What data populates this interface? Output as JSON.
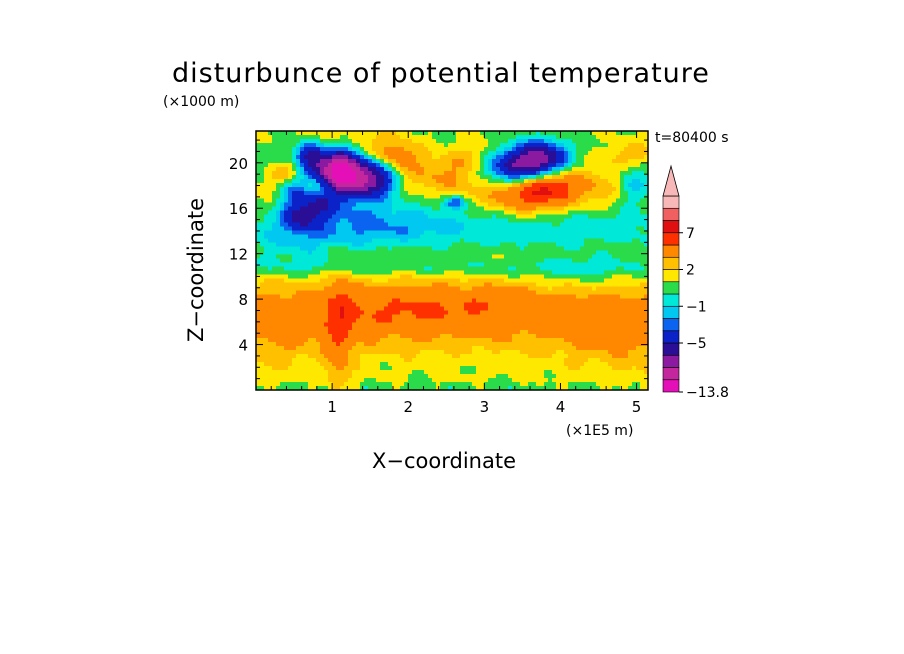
{
  "chart_data": {
    "type": "heatmap",
    "title": "disturbunce of potential temperature",
    "xlabel": "X−coordinate",
    "ylabel": "Z−coordinate",
    "x_unit_label": "(×1E5 m)",
    "y_unit_label": "(×1000 m)",
    "time_label": "t=80400 s",
    "xlim": [
      0,
      5.15
    ],
    "ylim": [
      0,
      22.8
    ],
    "x_ticks": [
      "1",
      "2",
      "3",
      "4",
      "5"
    ],
    "y_ticks": [
      "4",
      "8",
      "12",
      "16",
      "20"
    ],
    "colorbar": {
      "levels": [
        -13.8,
        -11,
        -9,
        -7,
        -5,
        -3,
        -2,
        -1,
        0,
        1,
        2,
        3,
        5,
        7,
        9,
        11
      ],
      "colors": [
        "#e40fb6",
        "#c4269e",
        "#8c1aa0",
        "#2a0f96",
        "#0a22c8",
        "#0a64f0",
        "#00c8f0",
        "#00e8d8",
        "#2adc4a",
        "#ffe800",
        "#ffc000",
        "#ff8800",
        "#ff3000",
        "#e01010",
        "#f06060",
        "#f8b8b8"
      ],
      "extend": "max",
      "labels": [
        "7",
        "2",
        "−1",
        "−5",
        "−13.8"
      ],
      "label_values": [
        7,
        2,
        -1,
        -5,
        -13.8
      ]
    },
    "field": {
      "background": 1.2,
      "features": [
        {
          "x": 2.5,
          "z": 6.5,
          "sx": 2.6,
          "sz": 2.6,
          "a": 2.2
        },
        {
          "x": 4.9,
          "z": 5.5,
          "sx": 0.6,
          "sz": 3.0,
          "a": 1.6
        },
        {
          "x": 0.25,
          "z": 5.0,
          "sx": 0.6,
          "sz": 3.0,
          "a": 1.0
        },
        {
          "x": 1.7,
          "z": 7.0,
          "sx": 0.9,
          "sz": 1.3,
          "a": 1.6
        },
        {
          "x": 3.3,
          "z": 7.5,
          "sx": 0.9,
          "sz": 1.2,
          "a": 1.2
        },
        {
          "x": 1.1,
          "z": 5.0,
          "sx": 0.12,
          "sz": 4.0,
          "a": 2.5
        },
        {
          "x": 2.6,
          "z": 13.6,
          "sx": 3.0,
          "sz": 1.1,
          "a": -1.2
        },
        {
          "x": 1.1,
          "z": 15.0,
          "sx": 0.8,
          "sz": 1.6,
          "a": -1.8
        },
        {
          "x": 2.0,
          "z": 14.8,
          "sx": 1.0,
          "sz": 1.2,
          "a": -1.0
        },
        {
          "x": 4.6,
          "z": 14.6,
          "sx": 0.9,
          "sz": 1.0,
          "a": -0.8
        },
        {
          "x": 2.5,
          "z": 10.8,
          "sx": 2.5,
          "sz": 0.6,
          "a": -1.4
        },
        {
          "x": 4.4,
          "z": 10.2,
          "sx": 0.6,
          "sz": 1.5,
          "a": -1.5
        },
        {
          "x": 0.55,
          "z": 12.0,
          "sx": 0.45,
          "sz": 1.6,
          "a": -1.2
        },
        {
          "x": 2.9,
          "z": 18.8,
          "sx": 2.8,
          "sz": 2.6,
          "a": -1.2
        },
        {
          "x": 2.45,
          "z": 18.8,
          "sx": 0.6,
          "sz": 1.5,
          "a": 3.0
        },
        {
          "x": 3.0,
          "z": 20.4,
          "sx": 0.3,
          "sz": 1.0,
          "a": 2.3
        },
        {
          "x": 3.5,
          "z": 17.2,
          "sx": 0.35,
          "sz": 1.2,
          "a": 4.2
        },
        {
          "x": 3.85,
          "z": 17.8,
          "sx": 0.25,
          "sz": 1.0,
          "a": 4.0
        },
        {
          "x": 3.35,
          "z": 19.7,
          "sx": 0.3,
          "sz": 1.1,
          "a": -7.5
        },
        {
          "x": 3.75,
          "z": 20.5,
          "sx": 0.22,
          "sz": 1.0,
          "a": -7.0
        },
        {
          "x": 4.4,
          "z": 18.0,
          "sx": 0.4,
          "sz": 1.3,
          "a": 2.5
        },
        {
          "x": 4.95,
          "z": 20.5,
          "sx": 0.25,
          "sz": 1.0,
          "a": 2.6
        },
        {
          "x": 0.7,
          "z": 20.8,
          "sx": 0.14,
          "sz": 0.8,
          "a": -5.5
        },
        {
          "x": 0.95,
          "z": 19.4,
          "sx": 0.18,
          "sz": 1.0,
          "a": -7.5
        },
        {
          "x": 1.15,
          "z": 19.6,
          "sx": 0.14,
          "sz": 1.6,
          "a": -6.5
        },
        {
          "x": 1.45,
          "z": 18.6,
          "sx": 0.25,
          "sz": 1.1,
          "a": -10.0
        },
        {
          "x": 1.85,
          "z": 20.6,
          "sx": 0.2,
          "sz": 1.0,
          "a": 3.0
        },
        {
          "x": 0.5,
          "z": 17.5,
          "sx": 0.2,
          "sz": 1.1,
          "a": -3.5
        },
        {
          "x": 0.6,
          "z": 15.2,
          "sx": 0.15,
          "sz": 0.8,
          "a": -4.5
        },
        {
          "x": 0.85,
          "z": 16.4,
          "sx": 0.14,
          "sz": 0.8,
          "a": -4.0
        },
        {
          "x": 0.4,
          "z": 19.0,
          "sx": 0.15,
          "sz": 0.8,
          "a": 2.5
        },
        {
          "x": 0.2,
          "z": 17.5,
          "sx": 0.18,
          "sz": 1.2,
          "a": 1.8
        },
        {
          "x": 0.75,
          "z": 18.0,
          "sx": 0.12,
          "sz": 0.8,
          "a": 2.2
        },
        {
          "x": 1.2,
          "z": 21.8,
          "sx": 0.4,
          "sz": 0.9,
          "a": 1.8
        },
        {
          "x": 2.6,
          "z": 16.5,
          "sx": 0.1,
          "sz": 0.4,
          "a": -3.5
        },
        {
          "x": 4.95,
          "z": 18.5,
          "sx": 0.15,
          "sz": 1.5,
          "a": -2.5
        },
        {
          "x": 2.2,
          "z": 2.0,
          "sx": 2.5,
          "sz": 1.2,
          "a": -0.4
        }
      ],
      "surface": {
        "z_top": 1.0,
        "amplitude": -1.3
      }
    }
  }
}
